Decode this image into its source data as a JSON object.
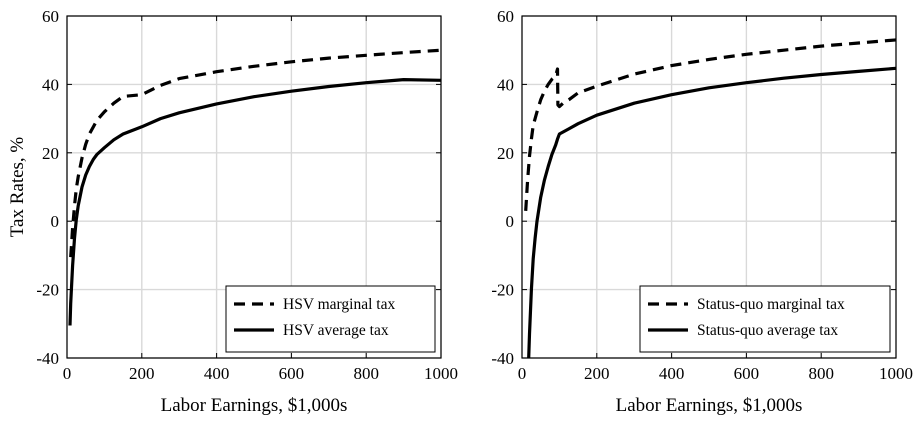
{
  "figure": {
    "ylabel": "Tax Rates, %"
  },
  "chart_data": [
    {
      "type": "line",
      "xlabel": "Labor Earnings, $1,000s",
      "ylabel": "Tax Rates, %",
      "xlim": [
        0,
        1000
      ],
      "ylim": [
        -40,
        60
      ],
      "xticks": [
        0,
        200,
        400,
        600,
        800,
        1000
      ],
      "yticks": [
        -40,
        -20,
        0,
        20,
        40,
        60
      ],
      "xtick_labels": [
        "0",
        "200",
        "400",
        "600",
        "800",
        "1000"
      ],
      "ytick_labels": [
        "-40",
        "-20",
        "0",
        "20",
        "40",
        "60"
      ],
      "grid": true,
      "legend_position": "bottom-right",
      "series": [
        {
          "name": "HSV marginal tax",
          "style": "dashed",
          "color": "#000000",
          "x": [
            10,
            15,
            20,
            25,
            30,
            40,
            50,
            60,
            70,
            80,
            100,
            125,
            150,
            200,
            250,
            300,
            400,
            500,
            600,
            700,
            800,
            900,
            1000
          ],
          "y": [
            -10.5,
            -2,
            4.5,
            9.5,
            13,
            18.5,
            22.5,
            25.5,
            27.5,
            29.5,
            32,
            34.5,
            36.5,
            37,
            39.7,
            41.7,
            43.7,
            45.3,
            46.6,
            47.7,
            48.5,
            49.3,
            50
          ]
        },
        {
          "name": "HSV average tax",
          "style": "solid",
          "color": "#000000",
          "x": [
            8,
            10,
            15,
            20,
            25,
            30,
            40,
            50,
            60,
            70,
            80,
            100,
            125,
            150,
            200,
            250,
            300,
            400,
            500,
            600,
            700,
            800,
            900,
            1000
          ],
          "y": [
            -30.5,
            -24,
            -13,
            -5,
            0.5,
            4.5,
            10,
            13.5,
            16,
            18,
            19.5,
            21.5,
            23.8,
            25.5,
            27.6,
            30,
            31.7,
            34.3,
            36.4,
            38,
            39.4,
            40.5,
            41.4,
            41.2
          ]
        }
      ]
    },
    {
      "type": "line",
      "xlabel": "Labor Earnings, $1,000s",
      "ylabel": "",
      "xlim": [
        0,
        1000
      ],
      "ylim": [
        -40,
        60
      ],
      "xticks": [
        0,
        200,
        400,
        600,
        800,
        1000
      ],
      "yticks": [
        -40,
        -20,
        0,
        20,
        40,
        60
      ],
      "xtick_labels": [
        "0",
        "200",
        "400",
        "600",
        "800",
        "1000"
      ],
      "ytick_labels": [
        "-40",
        "-20",
        "0",
        "20",
        "40",
        "60"
      ],
      "grid": true,
      "legend_position": "bottom-right",
      "series": [
        {
          "name": "Status-quo marginal tax",
          "style": "dashed",
          "color": "#000000",
          "x": [
            10,
            15,
            20,
            25,
            30,
            40,
            50,
            60,
            70,
            80,
            90,
            95,
            96,
            100,
            110,
            125,
            150,
            200,
            300,
            400,
            500,
            600,
            700,
            800,
            900,
            1000
          ],
          "y": [
            3,
            12,
            19,
            24,
            28,
            32,
            35.5,
            38,
            40,
            41.5,
            42.5,
            44.5,
            34,
            33.5,
            34.5,
            35.5,
            37.5,
            39.5,
            43,
            45.5,
            47.3,
            48.8,
            50,
            51.2,
            52.1,
            53
          ]
        },
        {
          "name": "Status-quo average tax",
          "style": "solid",
          "color": "#000000",
          "x": [
            18,
            20,
            25,
            30,
            35,
            40,
            50,
            60,
            70,
            80,
            90,
            95,
            100,
            125,
            150,
            200,
            300,
            400,
            500,
            600,
            700,
            800,
            900,
            1000
          ],
          "y": [
            -40,
            -33,
            -20,
            -11,
            -5,
            0,
            7,
            12,
            16,
            19.5,
            22.3,
            24,
            25.5,
            27,
            28.5,
            31,
            34.5,
            37,
            39,
            40.5,
            41.8,
            42.9,
            43.8,
            44.7
          ]
        }
      ]
    }
  ]
}
